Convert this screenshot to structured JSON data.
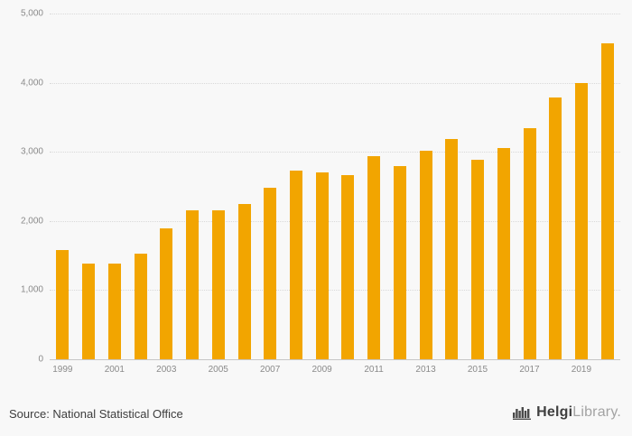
{
  "chart_data": {
    "type": "bar",
    "title": "",
    "xlabel": "",
    "ylabel": "",
    "categories": [
      "1999",
      "2000",
      "2001",
      "2002",
      "2003",
      "2004",
      "2005",
      "2006",
      "2007",
      "2008",
      "2009",
      "2010",
      "2011",
      "2012",
      "2013",
      "2014",
      "2015",
      "2016",
      "2017",
      "2018",
      "2019",
      "2020"
    ],
    "values": [
      1580,
      1390,
      1390,
      1530,
      1900,
      2150,
      2150,
      2240,
      2480,
      2730,
      2700,
      2660,
      2940,
      2790,
      3010,
      3180,
      2880,
      3050,
      3340,
      3790,
      3990,
      4570
    ],
    "ylim": [
      0,
      5000
    ],
    "yticks": [
      0,
      1000,
      2000,
      3000,
      4000,
      5000
    ],
    "ytick_labels": [
      "0",
      "1,000",
      "2,000",
      "3,000",
      "4,000",
      "5,000"
    ],
    "xtick_labels": [
      "1999",
      "2001",
      "2003",
      "2005",
      "2007",
      "2009",
      "2011",
      "2013",
      "2015",
      "2017",
      "2019"
    ],
    "bar_color": "#f2a500",
    "grid": "horizontal-dotted",
    "legend": false,
    "background_color": "#f8f8f8"
  },
  "footer": {
    "source": "Source: National Statistical Office",
    "logo_bold": "Helgi",
    "logo_light": "Library."
  }
}
